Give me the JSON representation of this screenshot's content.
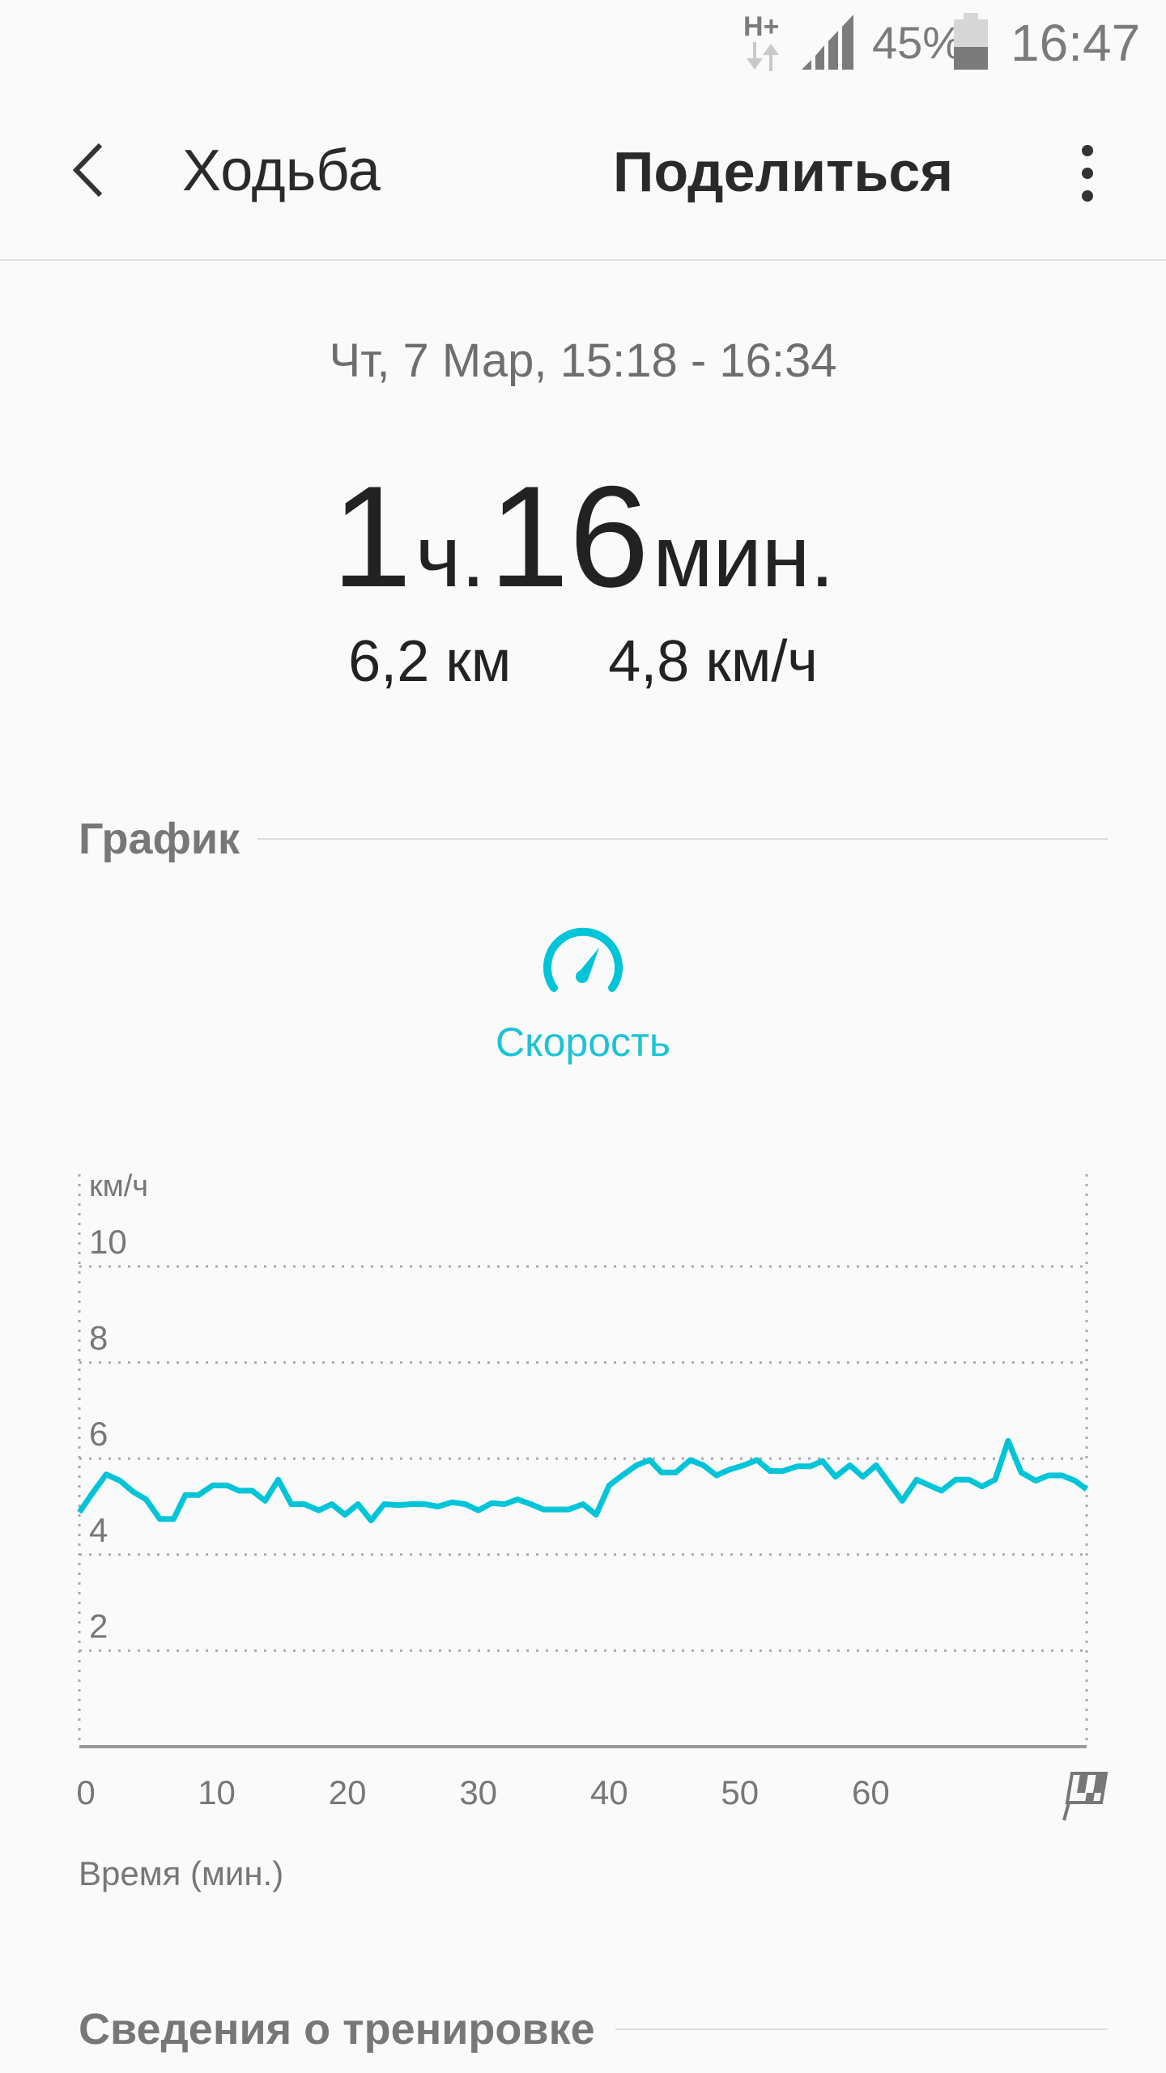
{
  "status_bar": {
    "network": "H+",
    "battery_percent": "45%",
    "battery_level": 45,
    "time": "16:47"
  },
  "header": {
    "title": "Ходьба",
    "share_label": "Поделиться"
  },
  "summary": {
    "date_range": "Чт, 7 Мар, 15:18 - 16:34",
    "hours": "1",
    "hours_unit": "ч.",
    "minutes": "16",
    "minutes_unit": "мин.",
    "distance": "6,2 км",
    "avg_speed": "4,8 км/ч"
  },
  "graph_section": {
    "title": "График",
    "metric_label": "Скорость",
    "metric_icon": "speedometer-icon"
  },
  "details_section": {
    "title": "Сведения о тренировке"
  },
  "colors": {
    "accent": "#00c4d8",
    "background": "#fafafa"
  },
  "chart_data": {
    "type": "line",
    "ylabel": "км/ч",
    "xlabel": "Время (мин.)",
    "xlim": [
      0,
      77
    ],
    "ylim": [
      0,
      10
    ],
    "yticks": [
      2,
      4,
      6,
      8,
      10
    ],
    "xticks": [
      0,
      10,
      20,
      30,
      40,
      50,
      60
    ],
    "x_end_icon": "finish-flag-icon",
    "grid": true,
    "series": [
      {
        "color": "#00c4d8",
        "x": [
          0,
          1,
          2.05,
          3.1,
          4.1,
          5.1,
          6.15,
          7.2,
          8.1,
          9.1,
          10.2,
          11.3,
          12.2,
          13.2,
          14.2,
          15.2,
          16.2,
          17.2,
          18.3,
          19.3,
          20.3,
          21.3,
          22.3,
          23.3,
          24.4,
          25.4,
          26.4,
          27.4,
          28.5,
          29.5,
          30.5,
          31.5,
          32.5,
          33.5,
          34.5,
          35.5,
          37.4,
          38.5,
          39.5,
          40.5,
          41.5,
          42.6,
          43.6,
          44.5,
          45.6,
          46.7,
          47.7,
          48.7,
          49.7,
          50.8,
          51.8,
          52.8,
          53.8,
          54.9,
          55.9,
          56.8,
          57.8,
          58.9,
          59.9,
          60.9,
          61.9,
          62.9,
          64,
          65,
          65.9,
          67,
          68,
          69,
          70,
          71,
          72,
          73.1,
          74.1,
          75.1,
          76.1,
          77
        ],
        "y": [
          4.88,
          5.28,
          5.67,
          5.54,
          5.31,
          5.15,
          4.74,
          4.74,
          5.24,
          5.24,
          5.44,
          5.44,
          5.33,
          5.33,
          5.12,
          5.56,
          5.05,
          5.05,
          4.92,
          5.05,
          4.83,
          5.05,
          4.71,
          5.05,
          5.03,
          5.05,
          5.05,
          5.0,
          5.09,
          5.05,
          4.92,
          5.07,
          5.05,
          5.15,
          5.05,
          4.94,
          4.94,
          5.05,
          4.83,
          5.44,
          5.65,
          5.86,
          5.97,
          5.71,
          5.71,
          5.97,
          5.86,
          5.65,
          5.77,
          5.86,
          5.97,
          5.74,
          5.74,
          5.84,
          5.84,
          5.95,
          5.62,
          5.86,
          5.62,
          5.86,
          5.49,
          5.12,
          5.56,
          5.44,
          5.33,
          5.56,
          5.56,
          5.42,
          5.56,
          6.37,
          5.71,
          5.54,
          5.65,
          5.65,
          5.54,
          5.36
        ]
      }
    ]
  }
}
